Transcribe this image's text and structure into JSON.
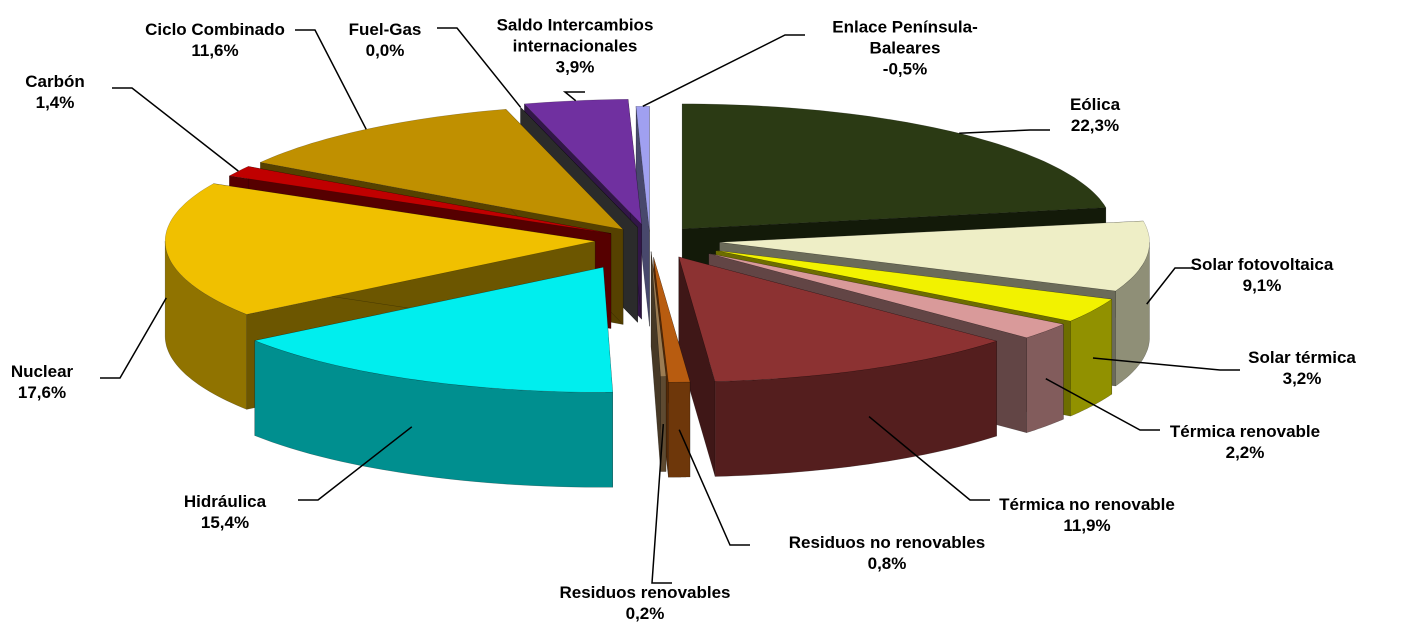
{
  "chart_data": {
    "type": "pie",
    "start_angle": "top",
    "direction": "clockwise",
    "exploded": true,
    "three_d": true,
    "categories": [
      "Eólica",
      "Solar fotovoltaica",
      "Solar térmica",
      "Térmica renovable",
      "Térmica no renovable",
      "Residuos no renovables",
      "Residuos renovables",
      "Hidráulica",
      "Nuclear",
      "Carbón",
      "Ciclo Combinado",
      "Fuel-Gas",
      "Saldo Intercambios internacionales",
      "Enlace Península-Baleares"
    ],
    "values": [
      22.3,
      9.1,
      3.2,
      2.2,
      11.9,
      0.8,
      0.2,
      15.4,
      17.6,
      1.4,
      11.6,
      0.0,
      3.9,
      -0.5
    ],
    "value_labels": [
      "22,3%",
      "9,1%",
      "3,2%",
      "2,2%",
      "11,9%",
      "0,8%",
      "0,2%",
      "15,4%",
      "17,6%",
      "1,4%",
      "11,6%",
      "0,0%",
      "3,9%",
      "-0,5%"
    ],
    "colors": [
      "#2b3a14",
      "#eeeec6",
      "#f2f200",
      "#d99a9a",
      "#8c3232",
      "#b85c10",
      "#9c7c52",
      "#00eeee",
      "#f0c000",
      "#c00000",
      "#c09000",
      "#606060",
      "#7030a0",
      "#a0a0f0"
    ]
  }
}
